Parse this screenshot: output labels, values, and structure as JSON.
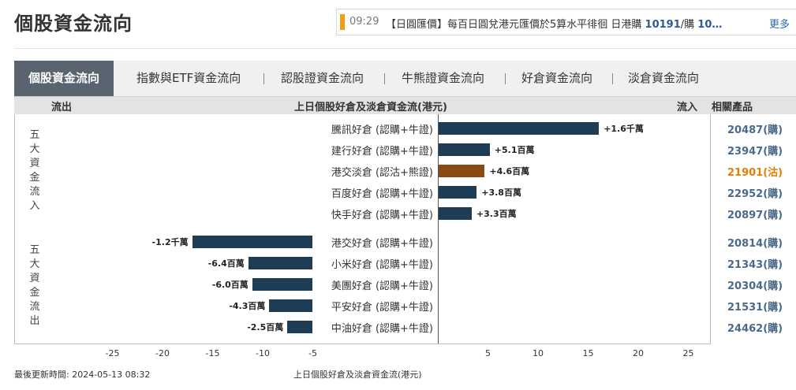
{
  "page_title": "個股資金流向",
  "ticker": {
    "time": "09:29",
    "text_prefix": "【日圓匯價】每百日圓兌港元匯價於5算水平徘徊 日港購 ",
    "text_bold1": "10191",
    "text_mid": "/購 ",
    "text_bold2": "10…",
    "more": "更多"
  },
  "tabs": [
    {
      "label": "個股資金流向",
      "active": true
    },
    {
      "label": "指數與ETF資金流向"
    },
    {
      "label": "認股證資金流向"
    },
    {
      "label": "牛熊證資金流向"
    },
    {
      "label": "好倉資金流向"
    },
    {
      "label": "淡倉資金流向"
    }
  ],
  "header": {
    "outflow": "流出",
    "title": "上日個股好倉及淡倉資金流(港元)",
    "inflow": "流入",
    "products": "相關產品"
  },
  "groups": {
    "inflow_label": "五大資金流入",
    "outflow_label": "五大資金流出"
  },
  "colors": {
    "call": "#1f3c55",
    "put": "#8a4a14",
    "product_call": "#4a6a8a",
    "product_put": "#e67e00"
  },
  "chart_data": {
    "type": "bar",
    "orientation": "horizontal-diverging",
    "title": "上日個股好倉及淡倉資金流(港元)",
    "unit": "百萬",
    "xlim": [
      -28,
      28
    ],
    "x_ticks": [
      -25,
      -20,
      -15,
      -10,
      -5,
      5,
      10,
      15,
      20,
      25
    ],
    "inflows": [
      {
        "name": "騰訊好倉 (認購+牛證)",
        "value": 16.0,
        "label": "+1.6千萬",
        "product": "20487(購)",
        "type": "call"
      },
      {
        "name": "建行好倉 (認購+牛證)",
        "value": 5.1,
        "label": "+5.1百萬",
        "product": "23947(購)",
        "type": "call"
      },
      {
        "name": "港交淡倉 (認沽+熊證)",
        "value": 4.6,
        "label": "+4.6百萬",
        "product": "21901(沽)",
        "type": "put"
      },
      {
        "name": "百度好倉 (認購+牛證)",
        "value": 3.8,
        "label": "+3.8百萬",
        "product": "22952(購)",
        "type": "call"
      },
      {
        "name": "快手好倉 (認購+牛證)",
        "value": 3.3,
        "label": "+3.3百萬",
        "product": "20897(購)",
        "type": "call"
      }
    ],
    "outflows": [
      {
        "name": "港交好倉 (認購+牛證)",
        "value": -12.0,
        "label": "-1.2千萬",
        "product": "20814(購)",
        "type": "call"
      },
      {
        "name": "小米好倉 (認購+牛證)",
        "value": -6.4,
        "label": "-6.4百萬",
        "product": "21343(購)",
        "type": "call"
      },
      {
        "name": "美團好倉 (認購+牛證)",
        "value": -6.0,
        "label": "-6.0百萬",
        "product": "20304(購)",
        "type": "call"
      },
      {
        "name": "平安好倉 (認購+牛證)",
        "value": -4.3,
        "label": "-4.3百萬",
        "product": "21531(購)",
        "type": "call"
      },
      {
        "name": "中油好倉 (認購+牛證)",
        "value": -2.5,
        "label": "-2.5百萬",
        "product": "24462(購)",
        "type": "call"
      }
    ]
  },
  "footer": {
    "updated": "最後更新時間: 2024-05-13 08:32",
    "caption": "上日個股好倉及淡倉資金流(港元)"
  }
}
